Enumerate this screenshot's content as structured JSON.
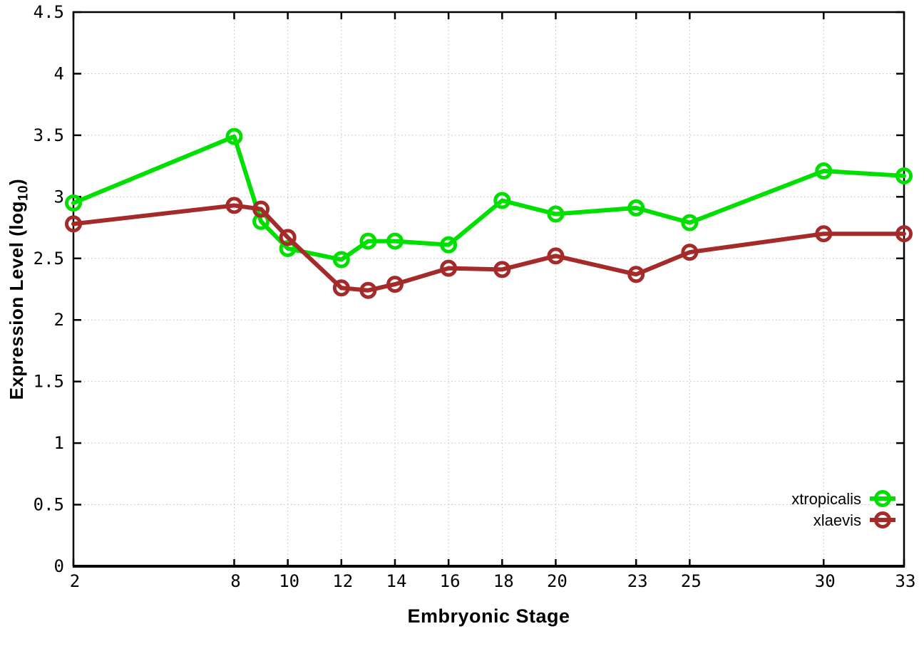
{
  "figure": {
    "background": "#ffffff"
  },
  "chart_data": {
    "type": "line",
    "title": "",
    "xlabel": "Embryonic Stage",
    "ylabel": "Expression Level (log10)",
    "ylabel_parts": {
      "main": "Expression Level (log",
      "sub": "10",
      "close": ")"
    },
    "x": [
      2,
      8,
      9,
      10,
      12,
      13,
      14,
      16,
      18,
      20,
      23,
      25,
      30,
      33
    ],
    "series": [
      {
        "name": "xtropicalis",
        "color": "#00e000",
        "marker": "open-circle",
        "values": [
          2.95,
          3.49,
          2.8,
          2.58,
          2.49,
          2.64,
          2.64,
          2.61,
          2.97,
          2.86,
          2.91,
          2.79,
          3.21,
          3.17
        ]
      },
      {
        "name": "xlaevis",
        "color": "#a52a2a",
        "marker": "open-circle",
        "values": [
          2.78,
          2.93,
          2.9,
          2.67,
          2.26,
          2.24,
          2.29,
          2.42,
          2.41,
          2.52,
          2.37,
          2.55,
          2.7,
          2.7
        ]
      }
    ],
    "xlim": [
      2,
      33
    ],
    "ylim": [
      0,
      4.5
    ],
    "x_ticks": [
      2,
      8,
      10,
      12,
      14,
      16,
      18,
      20,
      23,
      25,
      30,
      33
    ],
    "x_tick_labels": [
      "2",
      "8",
      "10",
      "12",
      "14",
      "16",
      "18",
      "20",
      "23",
      "25",
      "30",
      "33"
    ],
    "y_ticks": [
      0,
      0.5,
      1,
      1.5,
      2,
      2.5,
      3,
      3.5,
      4,
      4.5
    ],
    "y_tick_labels": [
      "0",
      "0.5",
      "1",
      "1.5",
      "2",
      "2.5",
      "3",
      "3.5",
      "4",
      "4.5"
    ],
    "grid": true,
    "grid_style": "dotted",
    "grid_color": "#bfbfbf",
    "border_color": "#000000",
    "tick_label_color": "#000000",
    "legend_position": "inside-bottom-right",
    "legend_entries": [
      "xtropicalis",
      "xlaevis"
    ]
  }
}
